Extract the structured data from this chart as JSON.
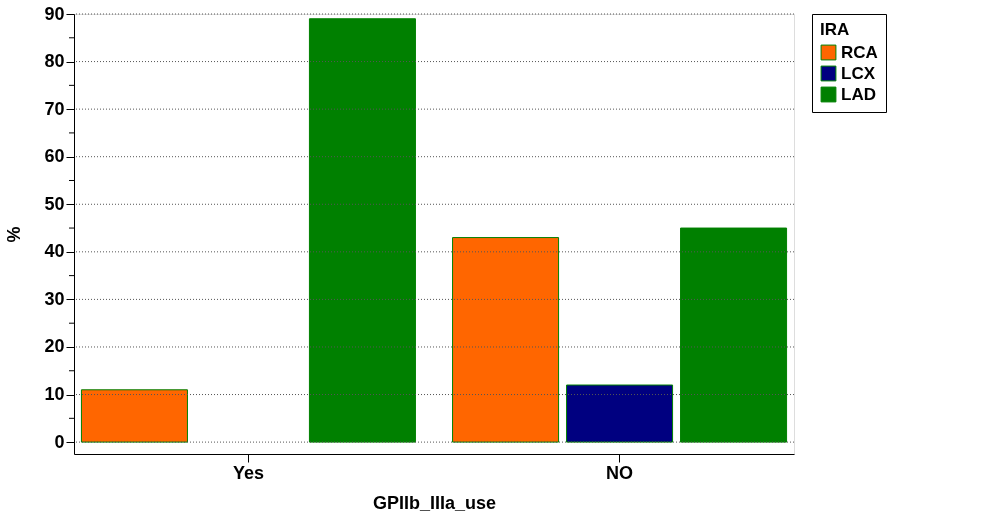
{
  "chart_data": {
    "type": "bar",
    "xlabel": "GPIIb_IIIa_use",
    "ylabel": "%",
    "legend_title": "IRA",
    "categories": [
      "Yes",
      "NO"
    ],
    "series": [
      {
        "name": "RCA",
        "color": "#ff6600",
        "values": [
          11,
          43
        ]
      },
      {
        "name": "LCX",
        "color": "#000080",
        "values": [
          null,
          12
        ]
      },
      {
        "name": "LAD",
        "color": "#008000",
        "values": [
          89,
          45
        ]
      }
    ],
    "ylim": [
      -2.5,
      90
    ],
    "yticks": [
      0,
      {
        "value": 5,
        "label": null
      },
      10,
      {
        "value": 15,
        "label": null
      },
      20,
      {
        "value": 25,
        "label": null
      },
      30,
      {
        "value": 35,
        "label": null
      },
      40,
      {
        "value": 45,
        "label": null
      },
      50,
      {
        "value": 55,
        "label": null
      },
      60,
      {
        "value": 65,
        "label": null
      },
      70,
      {
        "value": 75,
        "label": null
      },
      80,
      {
        "value": 85,
        "label": null
      },
      90
    ],
    "grid": "y",
    "legend": "right"
  }
}
